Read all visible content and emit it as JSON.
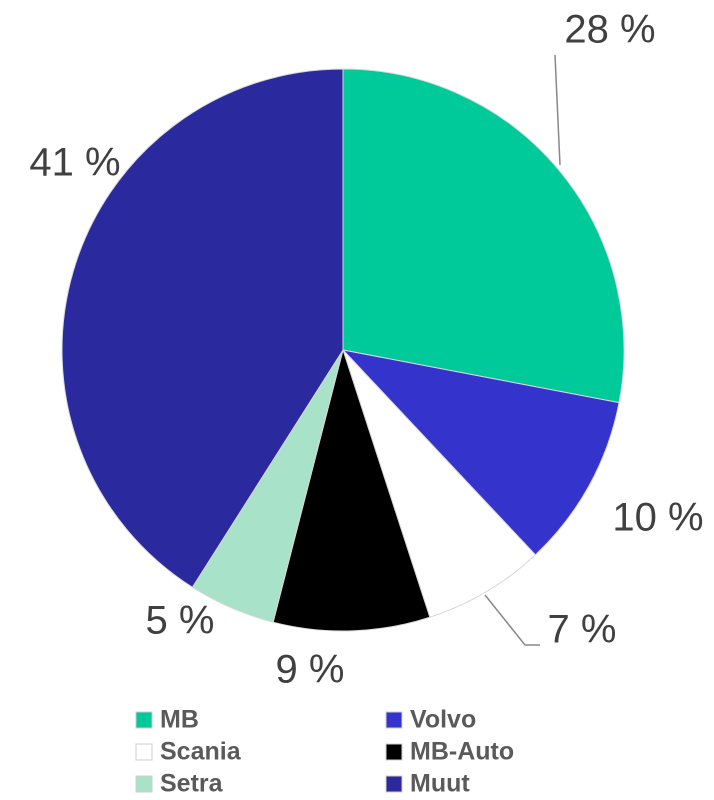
{
  "chart_data": {
    "type": "pie",
    "categories": [
      "MB",
      "Volvo",
      "Scania",
      "MB-Auto",
      "Setra",
      "Muut"
    ],
    "values": [
      28,
      10,
      7,
      9,
      5,
      41
    ],
    "value_labels": [
      "28 %",
      "10 %",
      "7 %",
      "9 %",
      "5 %",
      "41 %"
    ],
    "colors": [
      "#00c99a",
      "#3434cc",
      "#ffffff",
      "#000000",
      "#a8e2c9",
      "#2a2a9e"
    ],
    "legend": "bottom"
  }
}
